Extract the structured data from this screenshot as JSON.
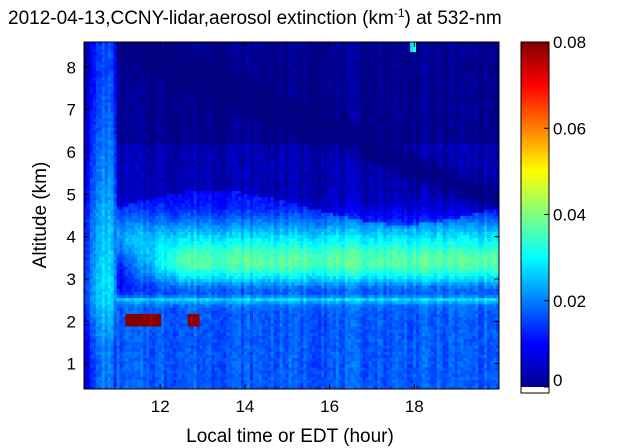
{
  "chart_data": {
    "type": "heatmap",
    "title": "2012-04-13,CCNY-lidar,aerosol extinction (km",
    "title_superscript": "-1",
    "title_suffix": ") at 532-nm",
    "xlabel": "Local time or EDT (hour)",
    "ylabel": "Altitude (km)",
    "xlim": [
      10.2,
      20.0
    ],
    "ylim": [
      0.4,
      8.6
    ],
    "x_ticks": [
      "12",
      "14",
      "16",
      "18"
    ],
    "y_ticks": [
      "1",
      "2",
      "3",
      "4",
      "5",
      "6",
      "7",
      "8"
    ],
    "colorbar": {
      "range": [
        0.0,
        0.08
      ],
      "tick_labels": [
        "0",
        "0.02",
        "0.04",
        "0.06",
        "0.08"
      ],
      "colormap": "jet"
    },
    "features": [
      {
        "description": "elevated aerosol layer",
        "x_range": [
          11.0,
          20.0
        ],
        "altitude_km": [
          2.6,
          4.6
        ],
        "extinction": 0.035
      },
      {
        "description": "planetary boundary layer",
        "x_range": [
          11.0,
          20.0
        ],
        "altitude_km": [
          0.4,
          2.5
        ],
        "extinction": 0.015
      },
      {
        "description": "cloud returns",
        "x_range": [
          11.2,
          12.9
        ],
        "altitude_km": [
          1.9,
          2.2
        ],
        "extinction": 0.08
      }
    ]
  }
}
